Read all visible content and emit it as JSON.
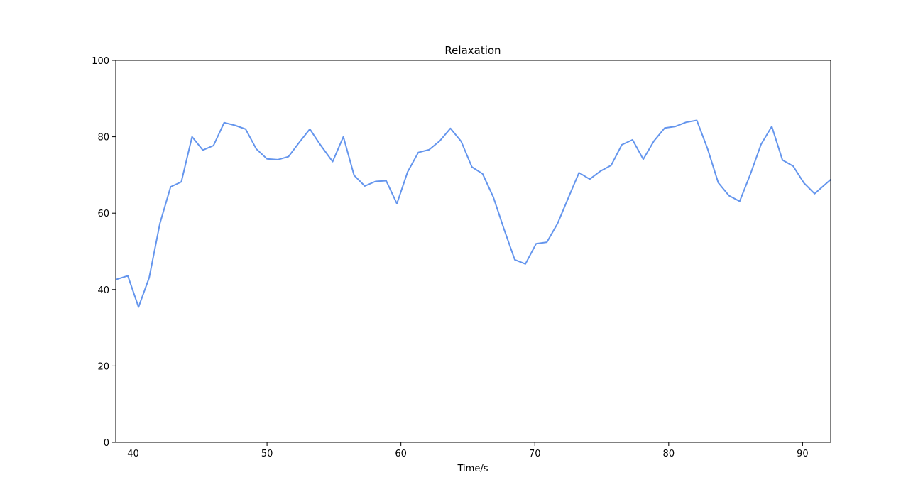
{
  "chart_data": {
    "type": "line",
    "title": "Relaxation",
    "xlabel": "Time/s",
    "ylabel": "",
    "xlim": [
      38.7,
      92.1
    ],
    "ylim": [
      0,
      100
    ],
    "xticks": [
      40,
      50,
      60,
      70,
      80,
      90
    ],
    "yticks": [
      0,
      20,
      40,
      60,
      80,
      100
    ],
    "grid": false,
    "series": [
      {
        "color": "#6495ED",
        "x": [
          38.7,
          39.6,
          40.4,
          41.2,
          42.0,
          42.8,
          43.6,
          44.4,
          45.2,
          46.0,
          46.8,
          47.6,
          48.4,
          49.2,
          50.0,
          50.8,
          51.6,
          52.4,
          53.2,
          54.0,
          54.9,
          55.7,
          56.5,
          57.3,
          58.1,
          58.9,
          59.7,
          60.5,
          61.3,
          62.1,
          62.9,
          63.7,
          64.5,
          65.3,
          66.1,
          66.9,
          67.7,
          68.5,
          69.3,
          70.1,
          70.9,
          71.7,
          72.5,
          73.3,
          74.1,
          74.9,
          75.7,
          76.5,
          77.3,
          78.1,
          78.9,
          79.7,
          80.5,
          81.3,
          82.1,
          82.9,
          83.7,
          84.5,
          85.3,
          86.1,
          86.9,
          87.7,
          88.5,
          89.3,
          90.1,
          90.9,
          92.1
        ],
        "y": [
          42.6,
          43.6,
          35.4,
          43.1,
          57.3,
          66.9,
          68.2,
          80.0,
          76.5,
          77.7,
          83.7,
          83.0,
          82.0,
          76.8,
          74.2,
          74.0,
          74.8,
          78.5,
          82.0,
          77.8,
          73.5,
          80.0,
          69.9,
          67.1,
          68.3,
          68.5,
          62.5,
          70.8,
          75.9,
          76.6,
          78.9,
          82.2,
          78.8,
          72.1,
          70.3,
          64.2,
          55.8,
          47.8,
          46.7,
          52.0,
          52.4,
          57.3,
          64.0,
          70.6,
          68.9,
          71.0,
          72.5,
          77.9,
          79.2,
          74.1,
          78.9,
          82.3,
          82.7,
          83.8,
          84.3,
          76.9,
          68.0,
          64.6,
          63.1,
          70.2,
          78.0,
          82.7,
          73.9,
          72.3,
          67.9,
          65.1,
          68.8
        ]
      }
    ]
  }
}
